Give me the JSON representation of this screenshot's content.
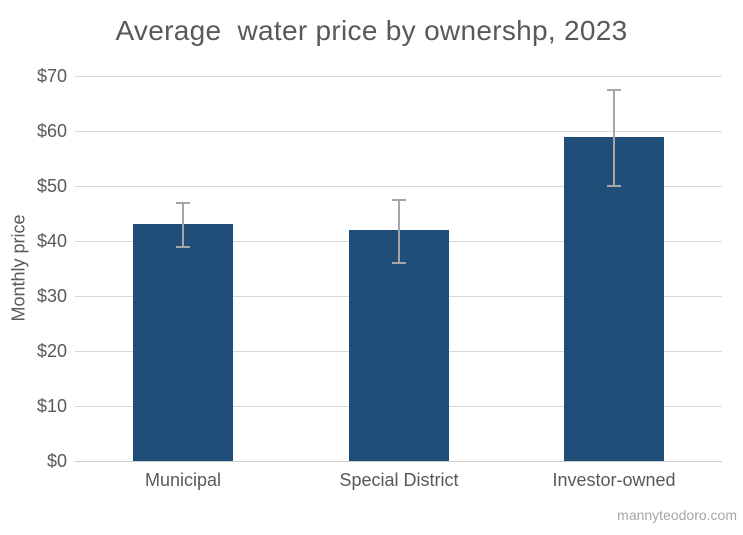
{
  "chart_data": {
    "type": "bar",
    "title": "Average  water price by ownershp, 2023",
    "categories": [
      "Municipal",
      "Special District",
      "Investor-owned"
    ],
    "values": [
      43,
      42,
      59
    ],
    "error_bars": {
      "low": [
        39,
        36,
        50
      ],
      "high": [
        47,
        47.5,
        67.5
      ]
    },
    "xlabel": "",
    "ylabel": "Monthly price",
    "ylim": [
      0,
      70
    ],
    "ytick_step": 10,
    "ytick_labels": [
      "$0",
      "$10",
      "$20",
      "$30",
      "$40",
      "$50",
      "$60",
      "$70"
    ],
    "grid": true,
    "legend": "none",
    "bar_color": "#1F4E79",
    "error_bar_color": "#A6A6A6",
    "gridline_color": "#D9D9D9",
    "text_color": "#595959"
  },
  "footer": {
    "credit": "mannyteodoro.com"
  }
}
